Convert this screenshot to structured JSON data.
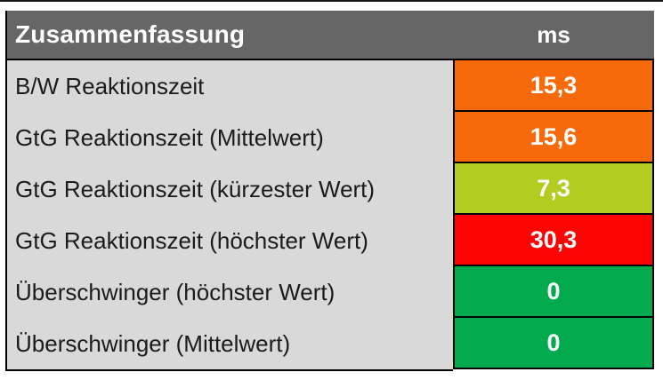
{
  "table": {
    "header": {
      "title": "Zusammenfassung",
      "unit_column_label": "ms"
    },
    "rows": [
      {
        "label": "B/W Reaktionszeit",
        "value": "15,3",
        "status": "orange"
      },
      {
        "label": "GtG Reaktionszeit (Mittelwert)",
        "value": "15,6",
        "status": "orange"
      },
      {
        "label": "GtG Reaktionszeit (kürzester Wert)",
        "value": "7,3",
        "status": "yellow-green"
      },
      {
        "label": "GtG Reaktionszeit (höchster Wert)",
        "value": "30,3",
        "status": "red"
      },
      {
        "label": "Überschwinger (höchster Wert)",
        "value": "0",
        "status": "green"
      },
      {
        "label": "Überschwinger (Mittelwert)",
        "value": "0",
        "status": "green"
      }
    ],
    "colors": {
      "header_background": "#666666",
      "label_background": "#d9d9d9",
      "orange": "#f76a0c",
      "yellow_green": "#b4cb1f",
      "red": "#fc0404",
      "green": "#04ab4e",
      "border": "#000000",
      "header_text": "#ffffff",
      "value_text": "#fdfdfd",
      "label_text": "#1b1b1b"
    }
  }
}
